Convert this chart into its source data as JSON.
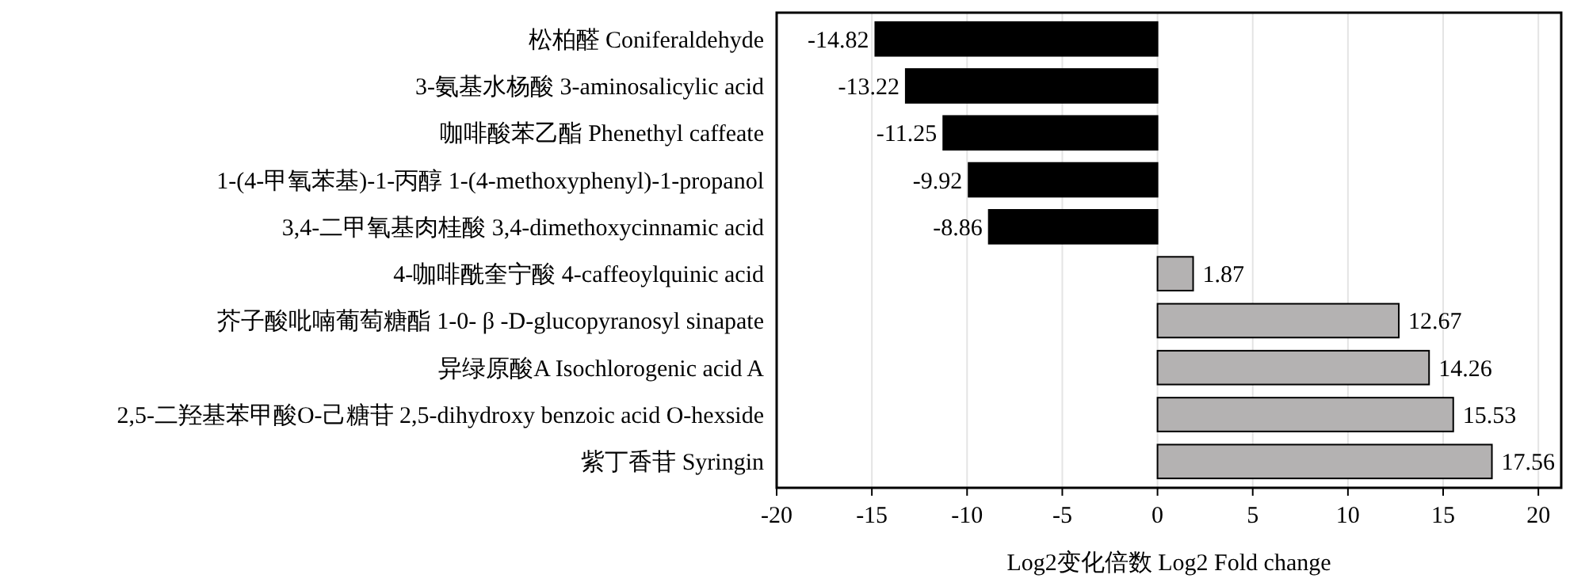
{
  "chart_data": {
    "type": "bar",
    "orientation": "horizontal",
    "xlabel": "Log2变化倍数 Log2 Fold change",
    "categories": [
      "松柏醛 Coniferaldehyde",
      "3-氨基水杨酸 3-aminosalicylic acid",
      "咖啡酸苯乙酯 Phenethyl caffeate",
      "1-(4-甲氧苯基)-1-丙醇 1-(4-methoxyphenyl)-1-propanol",
      "3,4-二甲氧基肉桂酸 3,4-dimethoxycinnamic acid",
      "4-咖啡酰奎宁酸 4-caffeoylquinic acid",
      "芥子酸吡喃葡萄糖酯 1-0- β -D-glucopyranosyl sinapate",
      "异绿原酸A Isochlorogenic acid A",
      "2,5-二羟基苯甲酸O-己糖苷 2,5-dihydroxy benzoic acid O-hexside",
      "紫丁香苷 Syringin"
    ],
    "values": [
      -14.82,
      -13.22,
      -11.25,
      -9.92,
      -8.86,
      1.87,
      12.67,
      14.26,
      15.53,
      17.56
    ],
    "colors": [
      "#000000",
      "#000000",
      "#000000",
      "#000000",
      "#000000",
      "#b4b2b2",
      "#b4b2b2",
      "#b4b2b2",
      "#b4b2b2",
      "#b4b2b2"
    ],
    "xlim": [
      -20,
      21.2
    ],
    "xticks": [
      -20,
      -15,
      -10,
      -5,
      0,
      5,
      10,
      15,
      20
    ],
    "grid": "x",
    "data_labels": true
  }
}
